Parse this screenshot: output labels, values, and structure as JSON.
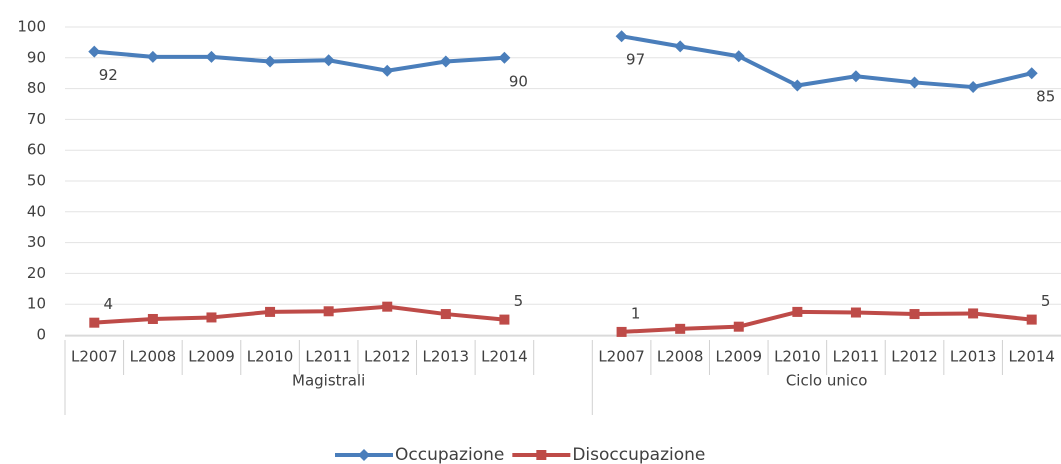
{
  "chart_data": {
    "type": "line",
    "categories": [
      "L2007",
      "L2008",
      "L2009",
      "L2010",
      "L2011",
      "L2012",
      "L2013",
      "L2014",
      null,
      "L2007",
      "L2008",
      "L2009",
      "L2010",
      "L2011",
      "L2012",
      "L2013",
      "L2014"
    ],
    "groups": [
      {
        "label": "Magistrali",
        "count": 9
      },
      {
        "label": "Ciclo unico",
        "count": 8
      }
    ],
    "series": [
      {
        "name": "Occupazione",
        "color": "#4a7ebb",
        "marker": "diamond",
        "values": [
          92,
          90.3,
          90.3,
          88.8,
          89.2,
          85.8,
          88.8,
          90,
          null,
          97,
          93.7,
          90.5,
          81,
          84,
          82,
          80.5,
          85
        ],
        "value_labels": [
          "92",
          null,
          null,
          null,
          null,
          null,
          null,
          "90",
          null,
          "97",
          null,
          null,
          null,
          null,
          null,
          null,
          "85"
        ]
      },
      {
        "name": "Disoccupazione",
        "color": "#be4b48",
        "marker": "square",
        "values": [
          4,
          5.2,
          5.7,
          7.5,
          7.7,
          9.2,
          6.8,
          5,
          null,
          1,
          2,
          2.7,
          7.5,
          7.3,
          6.8,
          7,
          5
        ],
        "value_labels": [
          "4",
          null,
          null,
          null,
          null,
          null,
          null,
          "5",
          null,
          "1",
          null,
          null,
          null,
          null,
          null,
          null,
          "5"
        ]
      }
    ],
    "ylim": [
      0,
      100
    ],
    "yticks": [
      0,
      10,
      20,
      30,
      40,
      50,
      60,
      70,
      80,
      90,
      100
    ],
    "grid": true,
    "legend": "bottom"
  }
}
